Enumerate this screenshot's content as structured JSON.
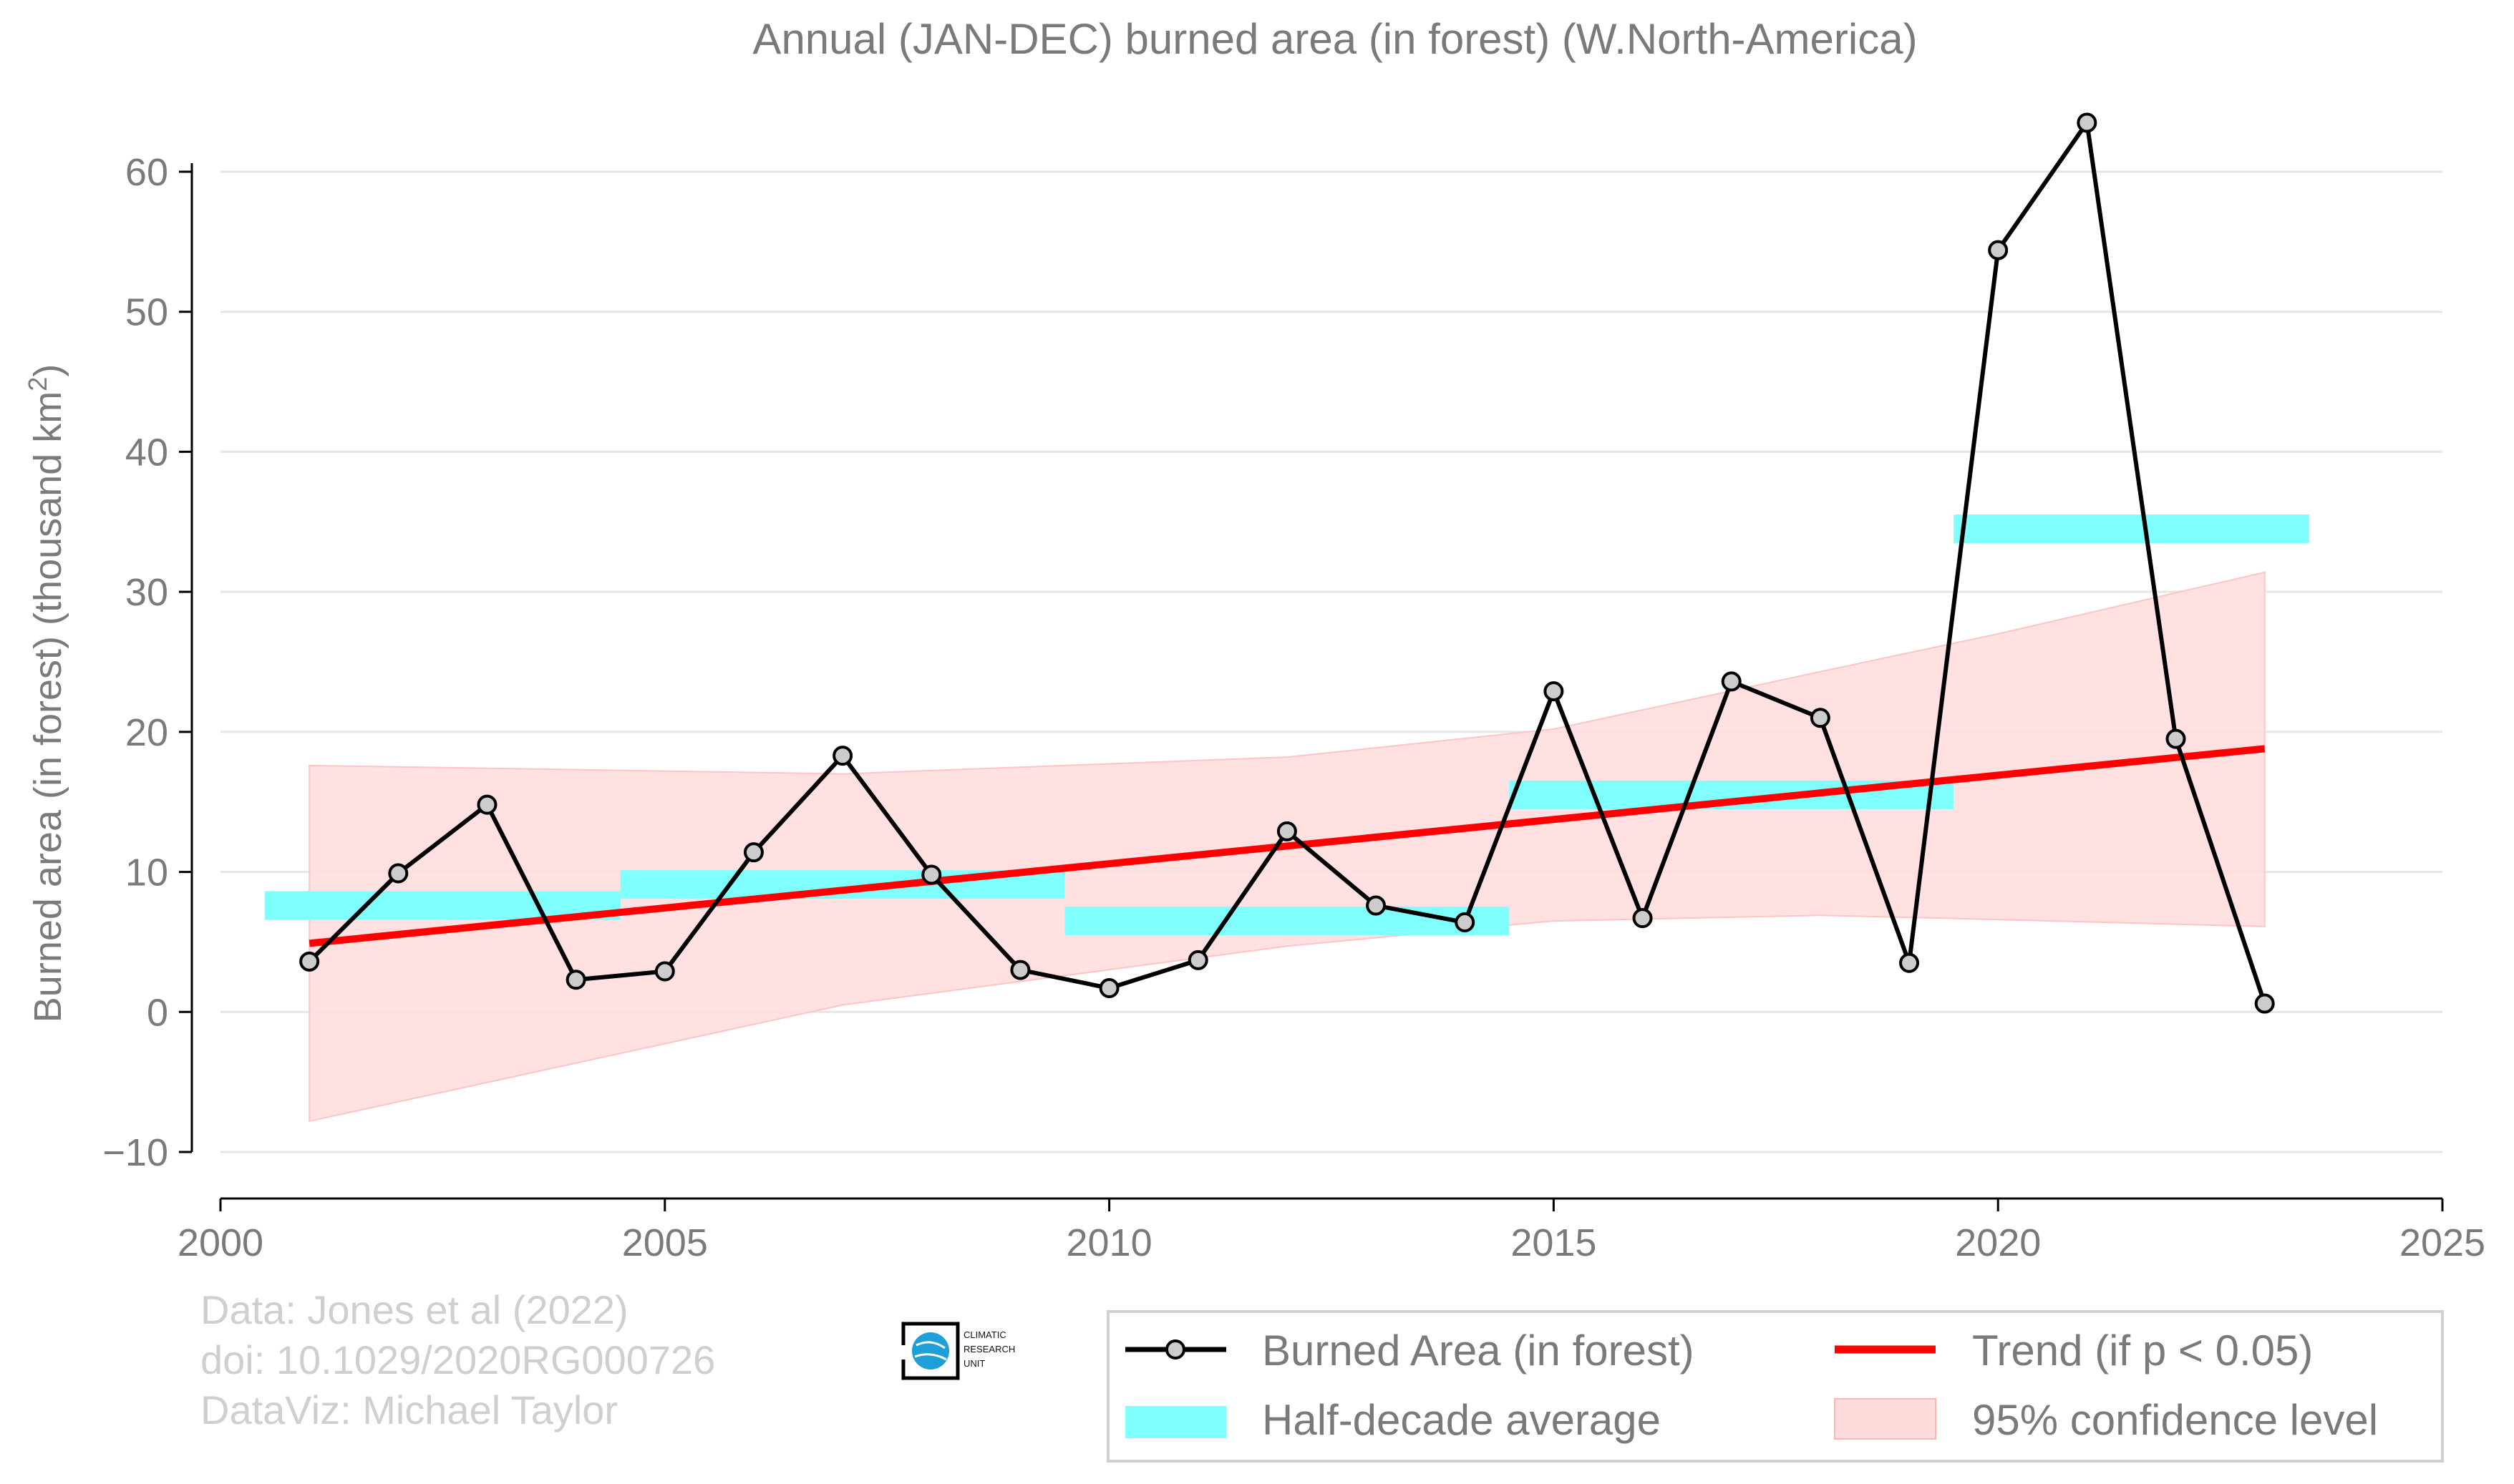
{
  "chart_data": {
    "type": "line",
    "title": "Annual (JAN-DEC) burned area (in forest) (W.North-America)",
    "ylabel": "Burned area (in forest) (thousand km",
    "ylabel_sup": "2",
    "ylabel_end": ")",
    "xlabel": "",
    "xlim": [
      2000,
      2025
    ],
    "ylim": [
      -13.3,
      60.0
    ],
    "xticks": [
      2000,
      2005,
      2010,
      2015,
      2020,
      2025
    ],
    "yticks": [
      -10,
      0,
      10,
      20,
      30,
      40,
      50,
      60
    ],
    "grid": "horizontal",
    "legend_position": "bottom-right",
    "series": [
      {
        "name": "Burned Area (in forest)",
        "kind": "line-markers",
        "color": "#000000",
        "marker_fill": "#cccccc",
        "x": [
          2001,
          2002,
          2003,
          2004,
          2005,
          2006,
          2007,
          2008,
          2009,
          2010,
          2011,
          2012,
          2013,
          2014,
          2015,
          2016,
          2017,
          2018,
          2019,
          2020,
          2021,
          2022,
          2023
        ],
        "y": [
          3.6,
          9.9,
          14.8,
          2.3,
          2.9,
          11.4,
          18.3,
          9.8,
          3.0,
          1.7,
          3.7,
          12.9,
          7.6,
          6.4,
          22.9,
          6.7,
          23.6,
          21.0,
          3.5,
          54.4,
          63.5,
          19.5,
          0.6
        ]
      },
      {
        "name": "Half-decade average",
        "kind": "bars",
        "color": "#80ffff",
        "segments": [
          {
            "x0": 2000.5,
            "x1": 2004.5,
            "y": 7.6
          },
          {
            "x0": 2004.5,
            "x1": 2009.5,
            "y": 9.1
          },
          {
            "x0": 2009.5,
            "x1": 2014.5,
            "y": 6.5
          },
          {
            "x0": 2014.5,
            "x1": 2019.5,
            "y": 15.5
          },
          {
            "x0": 2019.5,
            "x1": 2023.5,
            "y": 34.5
          }
        ]
      },
      {
        "name": "Trend (if p < 0.05)",
        "kind": "line",
        "color": "#ff0000",
        "x": [
          2001,
          2023
        ],
        "y": [
          4.9,
          18.8
        ]
      },
      {
        "name": "95% confidence level",
        "kind": "band",
        "color": "#ffdcdc",
        "x": [
          2001,
          2007,
          2012,
          2015,
          2018,
          2020,
          2023
        ],
        "upper": [
          17.6,
          17.0,
          18.2,
          20.2,
          24.3,
          27.0,
          31.4
        ],
        "lower": [
          -7.8,
          0.5,
          4.7,
          6.5,
          6.9,
          6.6,
          6.1
        ]
      }
    ]
  },
  "credits": {
    "line1": "Data: Jones et al (2022)",
    "line2": "doi: 10.1029/2020RG000726",
    "line3": "DataViz: Michael Taylor"
  },
  "logo": {
    "text1": "CLIMATIC",
    "text2": "RESEARCH",
    "text3": "UNIT"
  },
  "legend": {
    "burned": "Burned Area (in forest)",
    "trend": "Trend (if p < 0.05)",
    "halfdecade": "Half-decade average",
    "confidence": "95% confidence level"
  }
}
